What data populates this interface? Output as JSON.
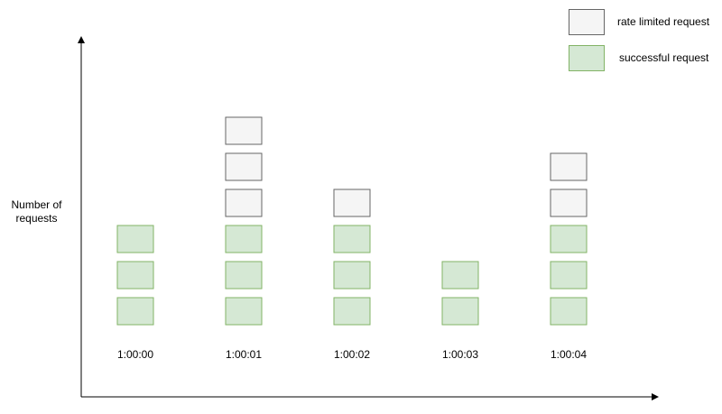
{
  "diagram": {
    "y_axis_label": "Number of requests",
    "colors": {
      "successful_fill": "#d5e8d4",
      "successful_stroke": "#82b366",
      "limited_fill": "#f5f5f5",
      "limited_stroke": "#666666",
      "axis": "#000000"
    }
  },
  "legend": {
    "rate_limited": "rate limited request",
    "successful": "successful request"
  },
  "chart_data": {
    "type": "bar",
    "categories": [
      "1:00:00",
      "1:00:01",
      "1:00:02",
      "1:00:03",
      "1:00:04"
    ],
    "series": [
      {
        "name": "successful request",
        "values": [
          3,
          3,
          3,
          2,
          3
        ]
      },
      {
        "name": "rate limited request",
        "values": [
          0,
          3,
          1,
          0,
          2
        ]
      }
    ],
    "xlabel": "",
    "ylabel": "Number of requests"
  }
}
